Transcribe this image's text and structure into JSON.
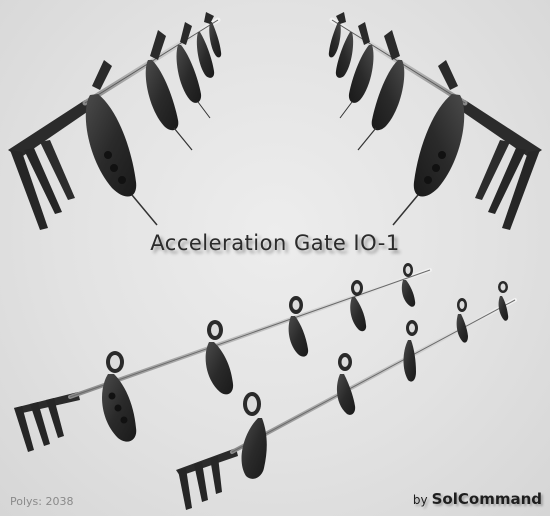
{
  "title": "Acceleration Gate IO-1",
  "polys_label": "Polys: 2038",
  "credit": {
    "by": "by",
    "author": "SolCommand"
  },
  "colors": {
    "background": "#e3e3e3",
    "model": "#2a2a2a",
    "rail": "#9a9a9a"
  }
}
